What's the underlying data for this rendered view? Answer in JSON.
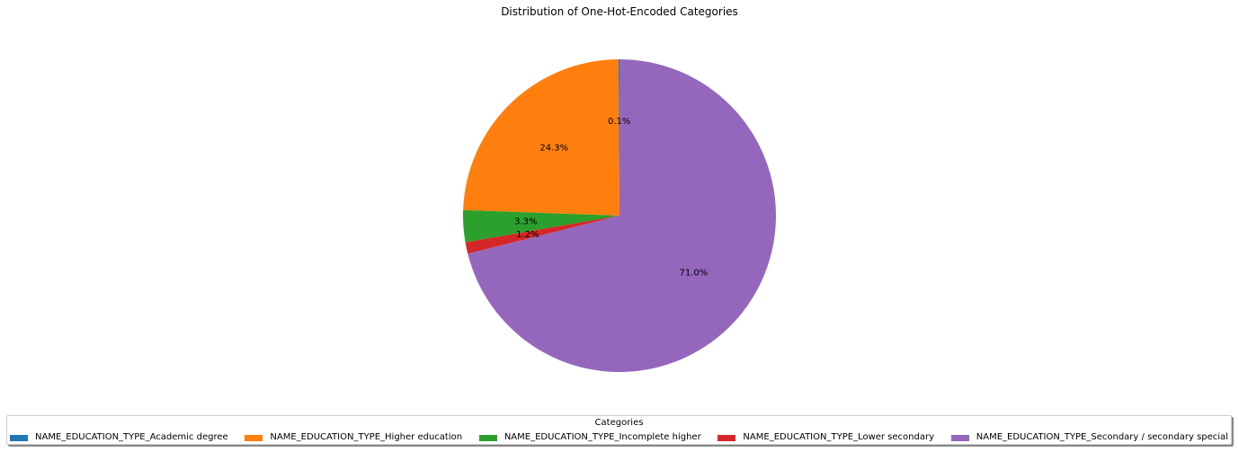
{
  "chart_data": {
    "type": "pie",
    "title": "Distribution of One-Hot-Encoded Categories",
    "legend_title": "Categories",
    "legend_position": "bottom",
    "start_angle_deg": 90,
    "direction": "counterclockwise",
    "slices": [
      {
        "name": "NAME_EDUCATION_TYPE_Academic degree",
        "value": 0.1,
        "label": "0.1%",
        "color": "#1f77b4"
      },
      {
        "name": "NAME_EDUCATION_TYPE_Higher education",
        "value": 24.3,
        "label": "24.3%",
        "color": "#ff7f0e"
      },
      {
        "name": "NAME_EDUCATION_TYPE_Incomplete higher",
        "value": 3.3,
        "label": "3.3%",
        "color": "#2ca02c"
      },
      {
        "name": "NAME_EDUCATION_TYPE_Lower secondary",
        "value": 1.2,
        "label": "1.2%",
        "color": "#d62728"
      },
      {
        "name": "NAME_EDUCATION_TYPE_Secondary / secondary special",
        "value": 71.0,
        "label": "71.0%",
        "color": "#9467bd"
      }
    ]
  }
}
